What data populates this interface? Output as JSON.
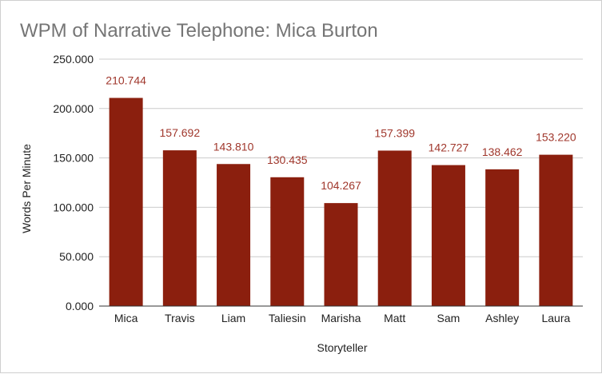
{
  "chart_data": {
    "type": "bar",
    "title": "WPM of Narrative Telephone: Mica Burton",
    "xlabel": "Storyteller",
    "ylabel": "Words Per Minute",
    "categories": [
      "Mica",
      "Travis",
      "Liam",
      "Taliesin",
      "Marisha",
      "Matt",
      "Sam",
      "Ashley",
      "Laura"
    ],
    "values": [
      210.744,
      157.692,
      143.81,
      130.435,
      104.267,
      157.399,
      142.727,
      138.462,
      153.22
    ],
    "data_labels": [
      "210.744",
      "157.692",
      "143.810",
      "130.435",
      "104.267",
      "157.399",
      "142.727",
      "138.462",
      "153.220"
    ],
    "ylim": [
      0,
      250
    ],
    "yticks": [
      "0.000",
      "50.000",
      "100.000",
      "150.000",
      "200.000",
      "250.000"
    ],
    "grid": true,
    "legend": "none",
    "bar_color": "#8b1f0e",
    "label_color": "#a0372c"
  }
}
